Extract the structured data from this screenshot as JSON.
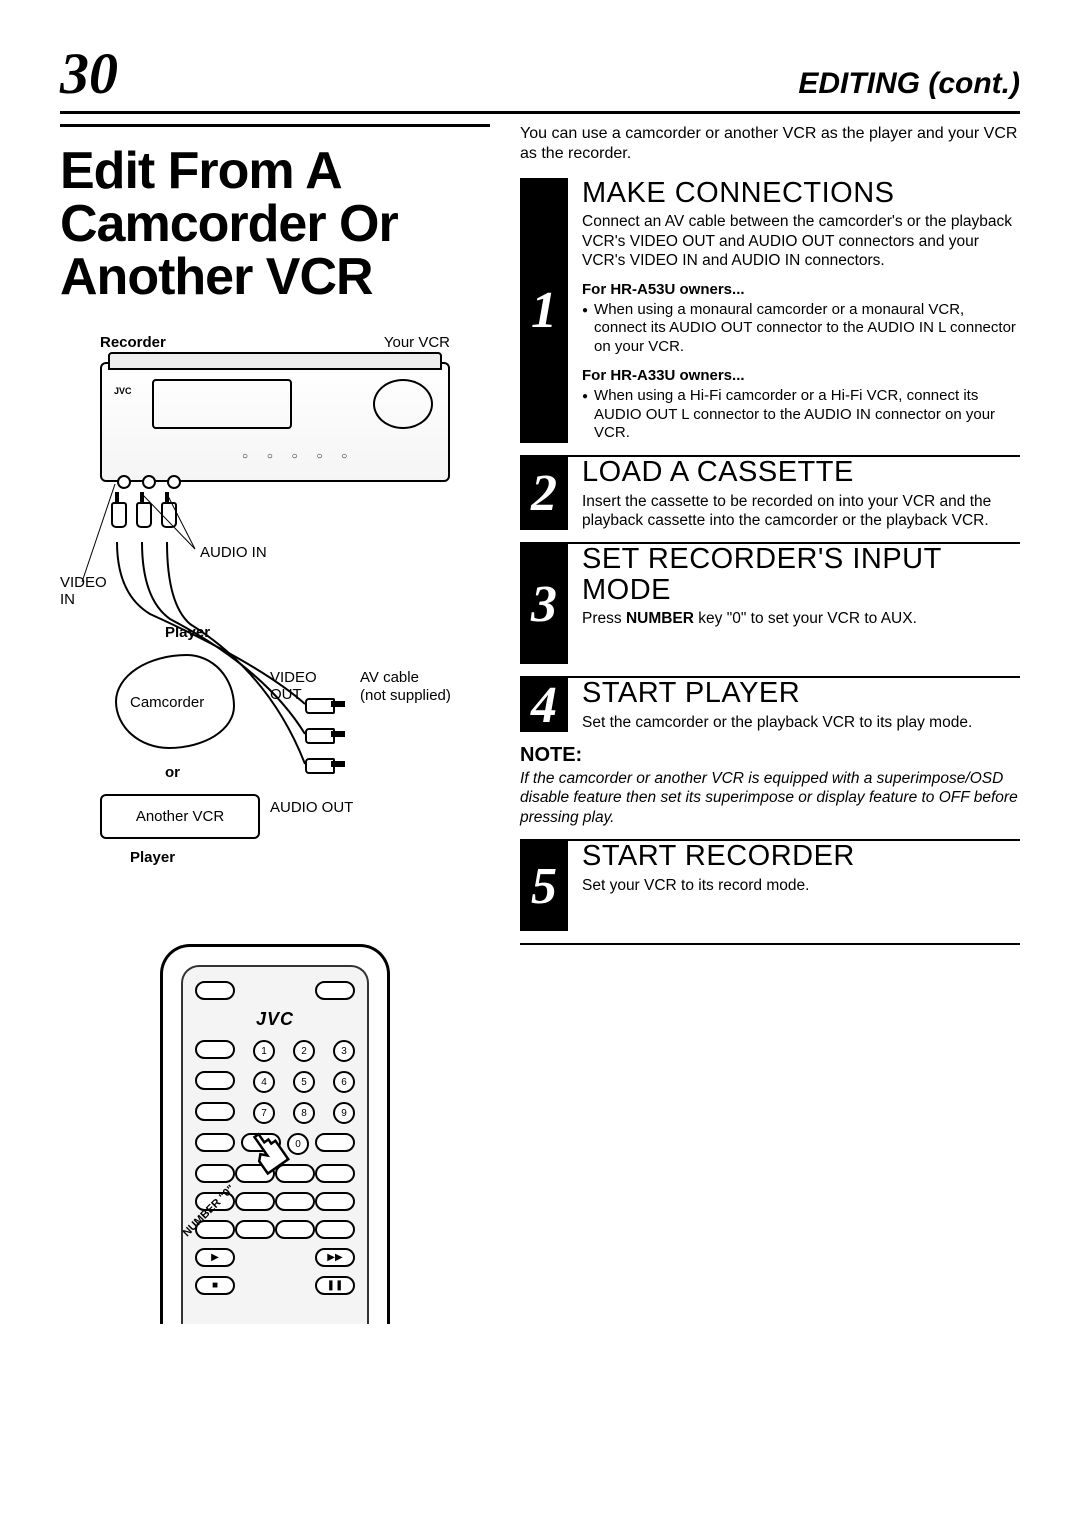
{
  "page_number": "30",
  "section": "EDITING (cont.)",
  "title": "Edit From A Camcorder Or Another VCR",
  "intro": "You can use a camcorder or another VCR as the player and your VCR as the recorder.",
  "diagram": {
    "recorder_label": "Recorder",
    "your_vcr": "Your VCR",
    "audio_in": "AUDIO IN",
    "video_in": "VIDEO\nIN",
    "player_label": "Player",
    "camcorder": "Camcorder",
    "or": "or",
    "another_vcr": "Another VCR",
    "player_label2": "Player",
    "video_out": "VIDEO\nOUT",
    "audio_out": "AUDIO OUT",
    "av_cable": "AV cable",
    "not_supplied": "(not supplied)"
  },
  "remote": {
    "brand": "JVC",
    "number_label": "NUMBER \"0\"",
    "keys": [
      "1",
      "2",
      "3",
      "4",
      "5",
      "6",
      "7",
      "8",
      "9",
      "0"
    ]
  },
  "steps": [
    {
      "num": "1",
      "heading": "MAKE CONNECTIONS",
      "body": "Connect an AV cable between the camcorder's or the playback VCR's VIDEO OUT and AUDIO OUT connectors and your VCR's VIDEO IN and AUDIO IN connectors.",
      "subs": [
        {
          "heading": "For HR-A53U owners...",
          "bullet": "When using a monaural camcorder or a monaural VCR, connect its AUDIO OUT connector to the AUDIO IN L connector on your VCR."
        },
        {
          "heading": "For HR-A33U owners...",
          "bullet": "When using a Hi-Fi camcorder or a Hi-Fi VCR, connect its AUDIO OUT L connector to the AUDIO IN connector on your VCR."
        }
      ]
    },
    {
      "num": "2",
      "heading": "LOAD A CASSETTE",
      "body": "Insert the cassette to be recorded on into your VCR and the playback cassette into the camcorder or the playback VCR."
    },
    {
      "num": "3",
      "heading": "SET RECORDER'S INPUT MODE",
      "body_html": "Press <b>NUMBER</b> key \"0\" to set your VCR to AUX."
    },
    {
      "num": "4",
      "heading": "START PLAYER",
      "body": "Set the camcorder or the playback VCR to its play mode.",
      "note_heading": "NOTE:",
      "note": "If the camcorder or another VCR is equipped with a superimpose/OSD disable feature then set its superimpose or display feature to OFF before pressing play."
    },
    {
      "num": "5",
      "heading": "START RECORDER",
      "body": "Set your VCR to its record mode."
    }
  ],
  "colors": {
    "black": "#000000",
    "white": "#ffffff",
    "panel": "#f4f4f4"
  }
}
